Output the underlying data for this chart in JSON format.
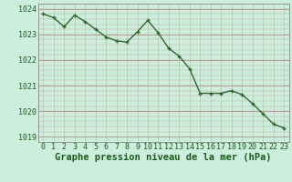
{
  "x": [
    0,
    1,
    2,
    3,
    4,
    5,
    6,
    7,
    8,
    9,
    10,
    11,
    12,
    13,
    14,
    15,
    16,
    17,
    18,
    19,
    20,
    21,
    22,
    23
  ],
  "y": [
    1023.8,
    1023.65,
    1023.3,
    1023.75,
    1023.5,
    1023.2,
    1022.9,
    1022.75,
    1022.7,
    1023.1,
    1023.55,
    1023.05,
    1022.45,
    1022.15,
    1021.65,
    1020.7,
    1020.7,
    1020.7,
    1020.8,
    1020.65,
    1020.3,
    1019.9,
    1019.5,
    1019.35
  ],
  "ylim": [
    1018.8,
    1024.2
  ],
  "yticks": [
    1019,
    1020,
    1021,
    1022,
    1023,
    1024
  ],
  "xticks": [
    0,
    1,
    2,
    3,
    4,
    5,
    6,
    7,
    8,
    9,
    10,
    11,
    12,
    13,
    14,
    15,
    16,
    17,
    18,
    19,
    20,
    21,
    22,
    23
  ],
  "line_color": "#2d6a2d",
  "marker_color": "#2d6a2d",
  "bg_color": "#cceedd",
  "grid_color_h": "#cc9999",
  "grid_color_v": "#aaccaa",
  "xlabel": "Graphe pression niveau de la mer (hPa)",
  "xlabel_color": "#1a5c1a",
  "xlabel_fontsize": 7.5,
  "tick_color": "#1a5c1a",
  "tick_fontsize": 6,
  "line_width": 1.0,
  "marker_size": 3.0
}
